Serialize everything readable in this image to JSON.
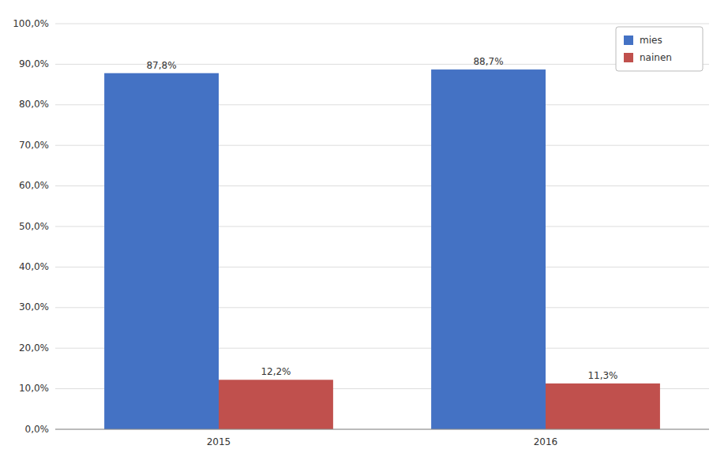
{
  "chart_data": {
    "type": "bar",
    "categories": [
      "2015",
      "2016"
    ],
    "series": [
      {
        "name": "mies",
        "color": "#4472C4",
        "values": [
          87.8,
          88.7
        ],
        "value_labels": [
          "87,8%",
          "88,7%"
        ]
      },
      {
        "name": "nainen",
        "color": "#C0504D",
        "values": [
          12.2,
          11.3
        ],
        "value_labels": [
          "12,2%",
          "11,3%"
        ]
      }
    ],
    "ylim": [
      0,
      100
    ],
    "yticks": [
      {
        "value": 0,
        "label": "0,0%"
      },
      {
        "value": 10,
        "label": "10,0%"
      },
      {
        "value": 20,
        "label": "20,0%"
      },
      {
        "value": 30,
        "label": "30,0%"
      },
      {
        "value": 40,
        "label": "40,0%"
      },
      {
        "value": 50,
        "label": "50,0%"
      },
      {
        "value": 60,
        "label": "60,0%"
      },
      {
        "value": 70,
        "label": "70,0%"
      },
      {
        "value": 80,
        "label": "80,0%"
      },
      {
        "value": 90,
        "label": "90,0%"
      },
      {
        "value": 100,
        "label": "100,0%"
      }
    ],
    "grid": true,
    "legend": "upper right",
    "data_labels": true
  }
}
